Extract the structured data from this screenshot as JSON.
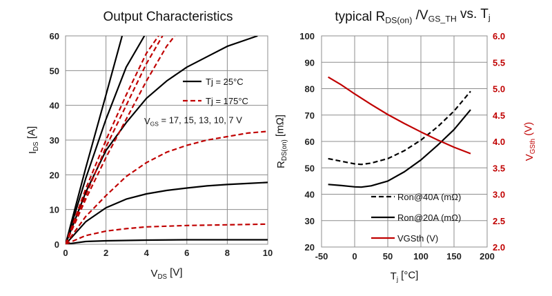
{
  "chart_data": [
    {
      "type": "line",
      "title": "Output Characteristics",
      "xlabel": {
        "main": "V",
        "sub": "DS",
        "rest": " [V]"
      },
      "ylabel": {
        "main": "I",
        "sub": "DS",
        "rest": " [A]"
      },
      "xlim": [
        0,
        10
      ],
      "ylim": [
        0,
        60
      ],
      "xticks": [
        "0",
        "2",
        "4",
        "6",
        "8",
        "10"
      ],
      "yticks": [
        "0",
        "10",
        "20",
        "30",
        "40",
        "50",
        "60"
      ],
      "grid": true,
      "legend": [
        {
          "label": "Tj = 25°C",
          "color": "#000000",
          "dash": false
        },
        {
          "label": "Tj = 175°C",
          "color": "#c00000",
          "dash": true
        }
      ],
      "annotation": {
        "main": "V",
        "sub": "GS",
        "rest": " = 17, 15, 13, 10, 7 V"
      },
      "series": [
        {
          "color": "#000000",
          "dash": false,
          "x": [
            0,
            1,
            2,
            2.8
          ],
          "y": [
            0,
            22,
            43,
            60
          ]
        },
        {
          "color": "#000000",
          "dash": false,
          "x": [
            0,
            1,
            2,
            3,
            3.9
          ],
          "y": [
            0,
            19,
            36,
            51,
            60
          ]
        },
        {
          "color": "#000000",
          "dash": false,
          "x": [
            0,
            1,
            2,
            3,
            4,
            5,
            6,
            7,
            8,
            9,
            9.5
          ],
          "y": [
            0,
            15,
            27,
            35,
            42,
            47,
            51,
            54,
            57,
            59,
            60
          ]
        },
        {
          "color": "#000000",
          "dash": false,
          "x": [
            0,
            1,
            2,
            3,
            4,
            5,
            6,
            7,
            8,
            9,
            10
          ],
          "y": [
            0,
            6.5,
            10.5,
            13,
            14.5,
            15.5,
            16.2,
            16.8,
            17.2,
            17.5,
            17.8
          ]
        },
        {
          "color": "#000000",
          "dash": false,
          "x": [
            0,
            1,
            2,
            3,
            4,
            6,
            8,
            10
          ],
          "y": [
            0,
            0.8,
            1,
            1.1,
            1.2,
            1.3,
            1.3,
            1.3
          ]
        },
        {
          "color": "#c00000",
          "dash": true,
          "x": [
            0,
            1,
            2,
            3,
            4,
            4.6
          ],
          "y": [
            0,
            16,
            30,
            43,
            55,
            60
          ]
        },
        {
          "color": "#c00000",
          "dash": true,
          "x": [
            0,
            1,
            2,
            3,
            4,
            4.8
          ],
          "y": [
            0,
            14,
            28,
            40,
            52,
            60
          ]
        },
        {
          "color": "#c00000",
          "dash": true,
          "x": [
            0,
            1,
            2,
            3,
            4,
            5,
            5.4
          ],
          "y": [
            0,
            13,
            25,
            36,
            47,
            57,
            60
          ]
        },
        {
          "color": "#c00000",
          "dash": true,
          "x": [
            0,
            1,
            2,
            3,
            4,
            5,
            6,
            7,
            8,
            9,
            10
          ],
          "y": [
            0,
            8,
            14,
            19.5,
            23.5,
            26.5,
            28.5,
            30,
            31,
            32,
            32.5
          ]
        },
        {
          "color": "#c00000",
          "dash": true,
          "x": [
            0,
            1,
            2,
            3,
            4,
            5,
            6,
            8,
            10
          ],
          "y": [
            0,
            2.5,
            3.8,
            4.5,
            5,
            5.2,
            5.4,
            5.6,
            5.8
          ]
        }
      ]
    },
    {
      "type": "line",
      "title": {
        "main": "typical R",
        "sub": "DS(on)",
        "mid": " /V",
        "sub2": "GS_TH",
        "rest": " vs. T",
        "sub3": "j"
      },
      "xlabel": {
        "main": "T",
        "sub": "j",
        "rest": " [°C]"
      },
      "ylabel": {
        "main": "R",
        "sub": "DS(on)",
        "rest": " [mΩ]"
      },
      "y2label": {
        "main": "V",
        "sub": "GSth",
        "rest": " (V)"
      },
      "xlim": [
        -50,
        200
      ],
      "ylim": [
        20,
        100
      ],
      "y2lim": [
        2.0,
        6.0
      ],
      "xticks": [
        "-50",
        "0",
        "50",
        "100",
        "150",
        "200"
      ],
      "yticks": [
        "20",
        "30",
        "40",
        "50",
        "60",
        "70",
        "80",
        "90",
        "100"
      ],
      "y2ticks": [
        "2.0",
        "2.5",
        "3.0",
        "3.5",
        "4.0",
        "4.5",
        "5.0",
        "5.5",
        "6.0"
      ],
      "grid": true,
      "legend": [
        {
          "label": "Ron@40A (mΩ)",
          "color": "#000000",
          "dash": true
        },
        {
          "label": "Ron@20A (mΩ)",
          "color": "#000000",
          "dash": false
        },
        {
          "label": "VGSth (V)",
          "color": "#c00000",
          "dash": false
        }
      ],
      "series": [
        {
          "name": "Ron@40A (mΩ)",
          "axis": "left",
          "color": "#000000",
          "dash": true,
          "x": [
            -40,
            -20,
            0,
            10,
            25,
            50,
            75,
            100,
            125,
            150,
            175
          ],
          "y": [
            53.5,
            52.5,
            51.5,
            51.3,
            51.8,
            53.5,
            56.5,
            60.5,
            65.5,
            71.5,
            79
          ]
        },
        {
          "name": "Ron@20A (mΩ)",
          "axis": "left",
          "color": "#000000",
          "dash": false,
          "x": [
            -40,
            -20,
            0,
            10,
            25,
            50,
            75,
            100,
            125,
            150,
            175
          ],
          "y": [
            43.7,
            43.3,
            42.8,
            42.7,
            43.2,
            45,
            48.5,
            53,
            58.5,
            64.5,
            72
          ]
        },
        {
          "name": "VGSth (V)",
          "axis": "right",
          "color": "#c00000",
          "dash": false,
          "x": [
            -40,
            -20,
            0,
            25,
            50,
            75,
            100,
            125,
            150,
            175
          ],
          "y": [
            5.22,
            5.07,
            4.9,
            4.7,
            4.51,
            4.34,
            4.18,
            4.03,
            3.89,
            3.77
          ]
        }
      ]
    }
  ]
}
